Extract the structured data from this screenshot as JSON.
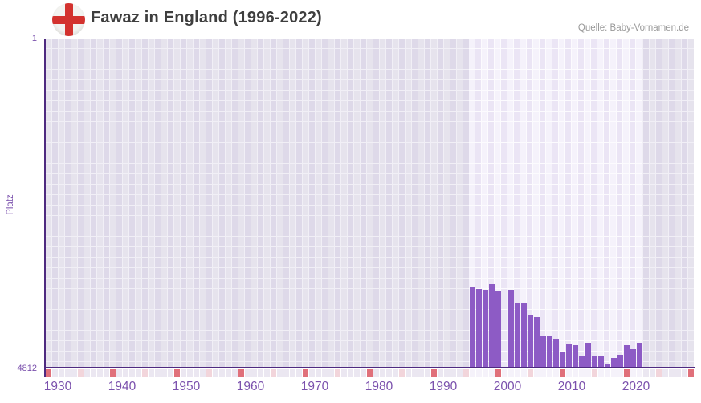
{
  "header": {
    "title": "Fawaz in England (1996-2022)",
    "source": "Quelle: Baby-Vornamen.de"
  },
  "axis": {
    "ylabel": "Platz",
    "y_top_label": "1",
    "y_bottom_label": "4812"
  },
  "colors": {
    "bar": "#8d5bc5",
    "axis_line": "#4e2a80",
    "tick_label": "#7b51ad",
    "decade_cell": "#e0707a",
    "half_decade_cell": "#f2d5db",
    "strip_cell_outside": "#ebe7f1",
    "strip_cell_inside": "#f5f2fa",
    "flag_red": "#d3322e",
    "flag_bg": "#f3f3f0",
    "title_text": "#3e3e3e",
    "source_text": "#999999"
  },
  "chart_data": {
    "type": "bar",
    "title": "Fawaz in England (1996-2022)",
    "xlabel": "",
    "ylabel": "Platz",
    "legend": null,
    "grid": true,
    "y_axis": {
      "min": 1,
      "max": 4812,
      "inverted": true,
      "tick_labels": [
        "1",
        "4812"
      ]
    },
    "x_axis": {
      "range_start": 1930,
      "range_end": 2030,
      "ticks": [
        1930,
        1940,
        1950,
        1960,
        1970,
        1980,
        1990,
        2000,
        2010,
        2020
      ]
    },
    "highlight_range": [
      1996,
      2022
    ],
    "strip": {
      "decade_years_marked": "red",
      "half_decade_years_marked": "pink"
    },
    "series": [
      {
        "name": "Platz",
        "points": [
          {
            "year": 1996,
            "platz": 3640
          },
          {
            "year": 1997,
            "platz": 3675
          },
          {
            "year": 1998,
            "platz": 3685
          },
          {
            "year": 1999,
            "platz": 3605
          },
          {
            "year": 2000,
            "platz": 3705
          },
          {
            "year": 2001,
            "platz": null
          },
          {
            "year": 2002,
            "platz": 3685
          },
          {
            "year": 2003,
            "platz": 3875
          },
          {
            "year": 2004,
            "platz": 3885
          },
          {
            "year": 2005,
            "platz": 4055
          },
          {
            "year": 2006,
            "platz": 4085
          },
          {
            "year": 2007,
            "platz": 4350
          },
          {
            "year": 2008,
            "platz": 4355
          },
          {
            "year": 2009,
            "platz": 4405
          },
          {
            "year": 2010,
            "platz": 4590
          },
          {
            "year": 2011,
            "platz": 4465
          },
          {
            "year": 2012,
            "platz": 4495
          },
          {
            "year": 2013,
            "platz": 4655
          },
          {
            "year": 2014,
            "platz": 4460
          },
          {
            "year": 2015,
            "platz": 4650
          },
          {
            "year": 2016,
            "platz": 4650
          },
          {
            "year": 2017,
            "platz": 4812
          },
          {
            "year": 2018,
            "platz": 4685
          },
          {
            "year": 2019,
            "platz": 4630
          },
          {
            "year": 2020,
            "platz": 4490
          },
          {
            "year": 2021,
            "platz": 4555
          },
          {
            "year": 2022,
            "platz": 4460
          }
        ]
      }
    ]
  }
}
